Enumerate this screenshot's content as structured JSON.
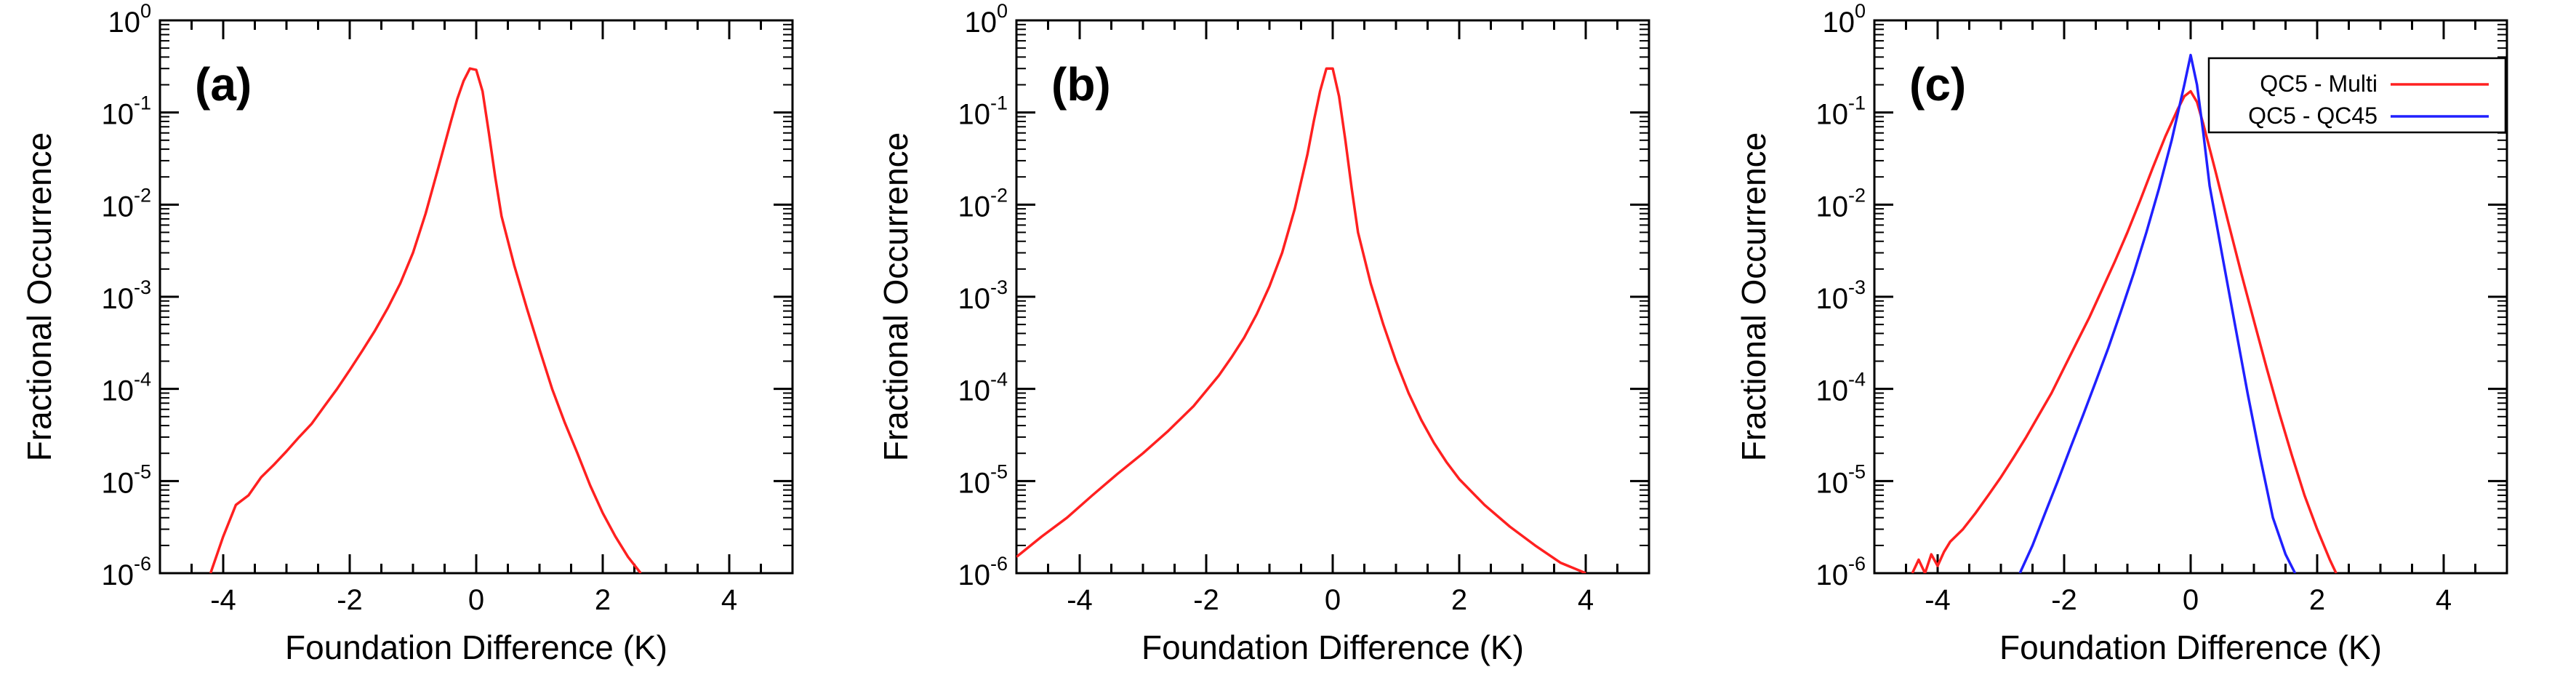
{
  "chart_data": [
    {
      "type": "line",
      "panel_label": "(a)",
      "xlabel": "Foundation Difference (K)",
      "ylabel": "Fractional Occurrence",
      "xlim": [
        -5,
        5
      ],
      "ylim": [
        1e-06,
        1
      ],
      "yscale": "log",
      "x_ticks": [
        -4,
        -2,
        0,
        2,
        4
      ],
      "x_tick_labels": [
        "-4",
        "-2",
        "0",
        "2",
        "4"
      ],
      "y_ticks": [
        {
          "base": "10",
          "exp": "-6"
        },
        {
          "base": "10",
          "exp": "-5"
        },
        {
          "base": "10",
          "exp": "-4"
        },
        {
          "base": "10",
          "exp": "-3"
        },
        {
          "base": "10",
          "exp": "-2"
        },
        {
          "base": "10",
          "exp": "-1"
        },
        {
          "base": "10",
          "exp": "0"
        }
      ],
      "series": [
        {
          "name": "",
          "color": "#ff2020",
          "x": [
            -4.2,
            -4.0,
            -3.8,
            -3.6,
            -3.4,
            -3.2,
            -3.0,
            -2.8,
            -2.6,
            -2.4,
            -2.2,
            -2.0,
            -1.8,
            -1.6,
            -1.4,
            -1.2,
            -1.0,
            -0.8,
            -0.6,
            -0.4,
            -0.3,
            -0.2,
            -0.1,
            0.0,
            0.1,
            0.2,
            0.3,
            0.4,
            0.6,
            0.8,
            1.0,
            1.2,
            1.4,
            1.6,
            1.8,
            2.0,
            2.2,
            2.4,
            2.6
          ],
          "y": [
            1e-06,
            2.5e-06,
            5.5e-06,
            7e-06,
            1.1e-05,
            1.5e-05,
            2.1e-05,
            3e-05,
            4.2e-05,
            6.5e-05,
            0.0001,
            0.00016,
            0.00026,
            0.00043,
            0.00075,
            0.0014,
            0.003,
            0.008,
            0.025,
            0.08,
            0.14,
            0.22,
            0.3,
            0.29,
            0.17,
            0.06,
            0.02,
            0.0075,
            0.0022,
            0.00075,
            0.00027,
            0.0001,
            4.3e-05,
            2e-05,
            9e-06,
            4.5e-06,
            2.5e-06,
            1.5e-06,
            1e-06
          ]
        }
      ]
    },
    {
      "type": "line",
      "panel_label": "(b)",
      "xlabel": "Foundation Difference (K)",
      "ylabel": "Fractional Occurrence",
      "xlim": [
        -5,
        5
      ],
      "ylim": [
        1e-06,
        1
      ],
      "yscale": "log",
      "x_ticks": [
        -4,
        -2,
        0,
        2,
        4
      ],
      "x_tick_labels": [
        "-4",
        "-2",
        "0",
        "2",
        "4"
      ],
      "y_ticks": [
        {
          "base": "10",
          "exp": "-6"
        },
        {
          "base": "10",
          "exp": "-5"
        },
        {
          "base": "10",
          "exp": "-4"
        },
        {
          "base": "10",
          "exp": "-3"
        },
        {
          "base": "10",
          "exp": "-2"
        },
        {
          "base": "10",
          "exp": "-1"
        },
        {
          "base": "10",
          "exp": "0"
        }
      ],
      "series": [
        {
          "name": "",
          "color": "#ff2020",
          "x": [
            -5.0,
            -4.6,
            -4.2,
            -3.8,
            -3.4,
            -3.0,
            -2.6,
            -2.2,
            -1.8,
            -1.6,
            -1.4,
            -1.2,
            -1.0,
            -0.8,
            -0.6,
            -0.4,
            -0.3,
            -0.2,
            -0.1,
            0.0,
            0.1,
            0.2,
            0.3,
            0.4,
            0.6,
            0.8,
            1.0,
            1.2,
            1.4,
            1.6,
            1.8,
            2.0,
            2.4,
            2.8,
            3.2,
            3.6,
            4.0
          ],
          "y": [
            1.5e-06,
            2.5e-06,
            4e-06,
            7e-06,
            1.2e-05,
            2e-05,
            3.5e-05,
            6.5e-05,
            0.00014,
            0.00022,
            0.00036,
            0.00065,
            0.0013,
            0.003,
            0.009,
            0.035,
            0.08,
            0.17,
            0.3,
            0.3,
            0.15,
            0.05,
            0.015,
            0.005,
            0.0014,
            0.0005,
            0.0002,
            9e-05,
            4.6e-05,
            2.6e-05,
            1.6e-05,
            1.05e-05,
            5.5e-06,
            3.2e-06,
            2e-06,
            1.3e-06,
            1e-06
          ]
        }
      ]
    },
    {
      "type": "line",
      "panel_label": "(c)",
      "xlabel": "Foundation Difference (K)",
      "ylabel": "Fractional Occurrence",
      "xlim": [
        -5,
        5
      ],
      "ylim": [
        1e-06,
        1
      ],
      "yscale": "log",
      "legend_position": "top-right",
      "x_ticks": [
        -4,
        -2,
        0,
        2,
        4
      ],
      "x_tick_labels": [
        "-4",
        "-2",
        "0",
        "2",
        "4"
      ],
      "y_ticks": [
        {
          "base": "10",
          "exp": "-6"
        },
        {
          "base": "10",
          "exp": "-5"
        },
        {
          "base": "10",
          "exp": "-4"
        },
        {
          "base": "10",
          "exp": "-3"
        },
        {
          "base": "10",
          "exp": "-2"
        },
        {
          "base": "10",
          "exp": "-1"
        },
        {
          "base": "10",
          "exp": "0"
        }
      ],
      "series": [
        {
          "name": "QC5 - Multi",
          "color": "#ff2020",
          "x": [
            -4.4,
            -4.3,
            -4.2,
            -4.1,
            -4.0,
            -3.9,
            -3.8,
            -3.6,
            -3.4,
            -3.2,
            -3.0,
            -2.8,
            -2.6,
            -2.4,
            -2.2,
            -2.0,
            -1.8,
            -1.6,
            -1.4,
            -1.2,
            -1.0,
            -0.8,
            -0.6,
            -0.4,
            -0.2,
            -0.1,
            0.0,
            0.1,
            0.2,
            0.4,
            0.6,
            0.8,
            1.0,
            1.2,
            1.4,
            1.6,
            1.8,
            2.0,
            2.2,
            2.3
          ],
          "y": [
            1e-06,
            1.4e-06,
            1e-06,
            1.6e-06,
            1.2e-06,
            1.7e-06,
            2.2e-06,
            3e-06,
            4.5e-06,
            7e-06,
            1.1e-05,
            1.8e-05,
            3e-05,
            5.2e-05,
            9e-05,
            0.00017,
            0.00032,
            0.0006,
            0.0012,
            0.0024,
            0.005,
            0.011,
            0.025,
            0.055,
            0.11,
            0.15,
            0.17,
            0.13,
            0.075,
            0.022,
            0.0062,
            0.0018,
            0.00055,
            0.00017,
            5.5e-05,
            1.9e-05,
            7e-06,
            3e-06,
            1.4e-06,
            1e-06
          ]
        },
        {
          "name": "QC5 - QC45",
          "color": "#2020ff",
          "x": [
            -2.7,
            -2.5,
            -2.3,
            -2.1,
            -1.9,
            -1.7,
            -1.5,
            -1.3,
            -1.1,
            -0.9,
            -0.7,
            -0.5,
            -0.3,
            -0.2,
            -0.1,
            0.0,
            0.1,
            0.2,
            0.3,
            0.5,
            0.7,
            0.9,
            1.1,
            1.3,
            1.5,
            1.65
          ],
          "y": [
            1e-06,
            2e-06,
            4.5e-06,
            1e-05,
            2.3e-05,
            5.2e-05,
            0.00012,
            0.00028,
            0.0007,
            0.0018,
            0.005,
            0.015,
            0.05,
            0.1,
            0.2,
            0.42,
            0.2,
            0.06,
            0.016,
            0.0028,
            0.0005,
            9e-05,
            1.8e-05,
            4e-06,
            1.6e-06,
            1e-06
          ]
        }
      ]
    }
  ]
}
